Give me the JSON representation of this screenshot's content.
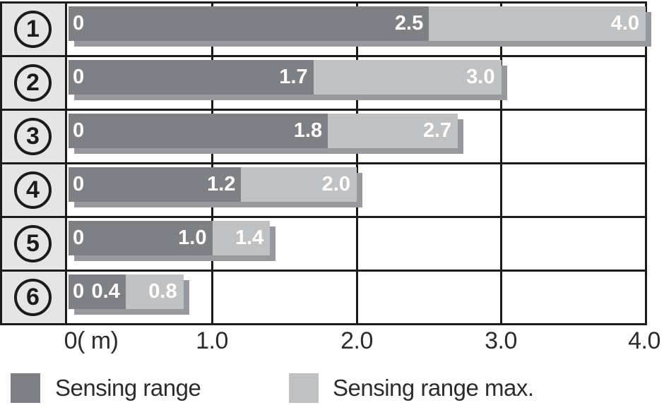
{
  "colors": {
    "background": "#ffffff",
    "bar_dark": "#7e8086",
    "bar_light": "#bfc1c3",
    "bar_shadow": "#97999e",
    "row_label_bg": "#e5e5e5",
    "border": "#1b1b19",
    "axis_text": "#2c2c2c",
    "value_text": "#ffffff"
  },
  "chart_data": {
    "type": "bar",
    "orientation": "horizontal",
    "categories": [
      "1",
      "2",
      "3",
      "4",
      "5",
      "6"
    ],
    "category_style": "circled-number",
    "series": [
      {
        "name": "Sensing range",
        "values": [
          2.5,
          1.7,
          1.8,
          1.2,
          1.0,
          0.4
        ],
        "labels": [
          "2.5",
          "1.7",
          "1.8",
          "1.2",
          "1.0",
          "0.4"
        ],
        "color_key": "bar_dark"
      },
      {
        "name": "Sensing range max.",
        "values": [
          4.0,
          3.0,
          2.7,
          2.0,
          1.4,
          0.8
        ],
        "labels": [
          "4.0",
          "3.0",
          "2.7",
          "2.0",
          "1.4",
          "0.8"
        ],
        "color_key": "bar_light"
      }
    ],
    "bar_zero_label": "0",
    "x_ticks": [
      "0( m)",
      "1.0",
      "2.0",
      "3.0",
      "4.0"
    ],
    "x_tick_values": [
      0,
      1,
      2,
      3,
      4
    ],
    "xlim": [
      0,
      4
    ],
    "x_unit": "m",
    "grid": true,
    "legend_position": "bottom"
  },
  "legend": {
    "items": [
      {
        "label": "Sensing range"
      },
      {
        "label": "Sensing range max."
      }
    ]
  }
}
